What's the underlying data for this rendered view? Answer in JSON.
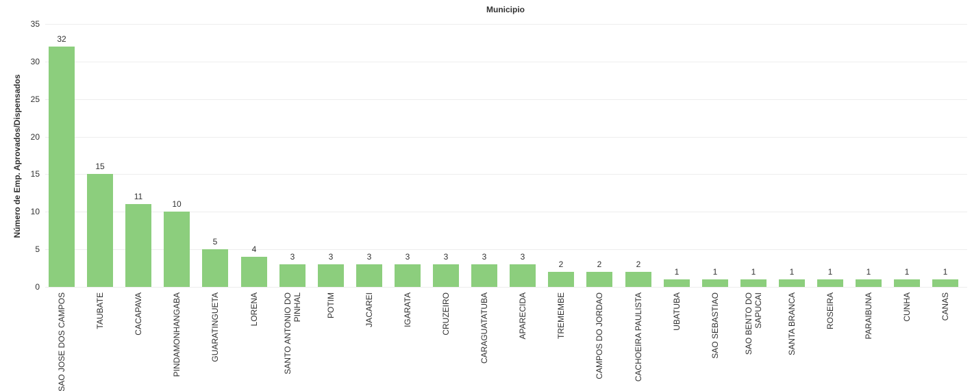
{
  "chart_data": {
    "type": "bar",
    "title": "Municipio",
    "xlabel": "",
    "ylabel": "Número de Emp. Aprovados/Dispensados",
    "categories": [
      "SAO JOSE DOS CAMPOS",
      "TAUBATE",
      "CACAPAVA",
      "PINDAMONHANGABA",
      "GUARATINGUETA",
      "LORENA",
      "SANTO ANTONIO DO\nPINHAL",
      "POTIM",
      "JACAREI",
      "IGARATA",
      "CRUZEIRO",
      "CARAGUATATUBA",
      "APARECIDA",
      "TREMEMBE",
      "CAMPOS DO JORDAO",
      "CACHOEIRA PAULISTA",
      "UBATUBA",
      "SAO SEBASTIAO",
      "SAO BENTO DO\nSAPUCAI",
      "SANTA BRANCA",
      "ROSEIRA",
      "PARAIBUNA",
      "CUNHA",
      "CANAS"
    ],
    "values": [
      32,
      15,
      11,
      10,
      5,
      4,
      3,
      3,
      3,
      3,
      3,
      3,
      3,
      2,
      2,
      2,
      1,
      1,
      1,
      1,
      1,
      1,
      1,
      1
    ],
    "value_labels_shown": true,
    "ylim": [
      0,
      35
    ],
    "yticks": [
      0,
      5,
      10,
      15,
      20,
      25,
      30,
      35
    ],
    "grid": "horizontal",
    "legend": "none",
    "bar_color": "#8cce7d",
    "grid_color": "#ededed",
    "text_color": "#303030",
    "background_color": "#ffffff"
  }
}
